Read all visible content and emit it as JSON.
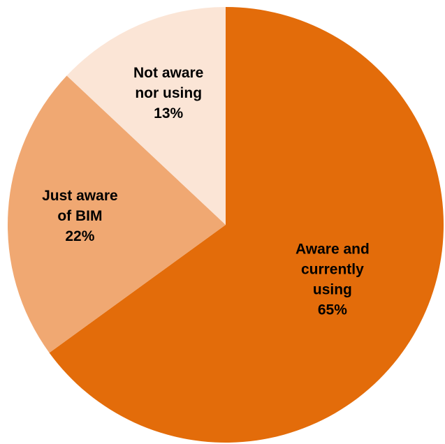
{
  "chart_data": {
    "type": "pie",
    "title": "",
    "start_angle_deg": 0,
    "direction": "clockwise",
    "legend": "none",
    "slices": [
      {
        "label_lines": [
          "Aware and",
          "currently",
          "using"
        ],
        "value": 65,
        "value_label": "65%",
        "color": "#E36C0A"
      },
      {
        "label_lines": [
          "Just aware",
          "of BIM"
        ],
        "value": 22,
        "value_label": "22%",
        "color": "#F0A872"
      },
      {
        "label_lines": [
          "Not aware",
          "nor using"
        ],
        "value": 13,
        "value_label": "13%",
        "color": "#FBE5D6"
      }
    ]
  }
}
